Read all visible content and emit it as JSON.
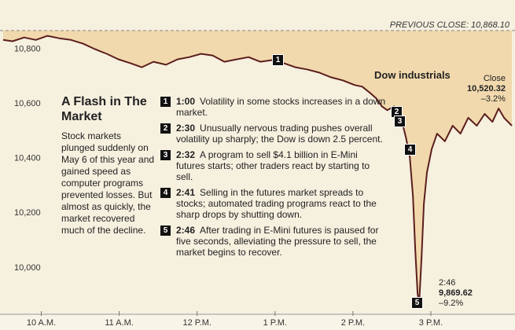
{
  "chart_data": {
    "type": "line",
    "title": "A Flash in The Market",
    "description": "Stock markets plunged suddenly on May 6 of this year and gained speed as computer programs prevented losses. But almost as quickly, the market recovered much of the decline.",
    "x": [
      9.51,
      9.63,
      9.78,
      9.93,
      10.08,
      10.23,
      10.38,
      10.54,
      10.69,
      10.84,
      10.99,
      11.14,
      11.29,
      11.44,
      11.6,
      11.75,
      11.9,
      12.05,
      12.2,
      12.35,
      12.51,
      12.66,
      12.81,
      12.96,
      13.11,
      13.26,
      13.41,
      13.57,
      13.72,
      13.87,
      14.02,
      14.12,
      14.22,
      14.3,
      14.37,
      14.44,
      14.53,
      14.58,
      14.63,
      14.68,
      14.73,
      14.77,
      14.8,
      14.83,
      14.85,
      14.88,
      14.91,
      14.95,
      15.01,
      15.08,
      15.18,
      15.28,
      15.38,
      15.48,
      15.59,
      15.69,
      15.79,
      15.87,
      15.94,
      16.04
    ],
    "series": [
      {
        "name": "Dow industrials",
        "color": "#5b1e1c",
        "values": [
          10834,
          10829,
          10843,
          10834,
          10849,
          10840,
          10834,
          10820,
          10800,
          10783,
          10763,
          10749,
          10734,
          10754,
          10743,
          10763,
          10771,
          10783,
          10777,
          10754,
          10763,
          10771,
          10754,
          10760,
          10749,
          10734,
          10726,
          10714,
          10697,
          10686,
          10669,
          10663,
          10640,
          10620,
          10591,
          10577,
          10591,
          10554,
          10534,
          10477,
          10406,
          10263,
          10063,
          9906,
          9870,
          10034,
          10234,
          10349,
          10434,
          10491,
          10463,
          10520,
          10491,
          10549,
          10520,
          10563,
          10534,
          10583,
          10549,
          10520
        ]
      }
    ],
    "xlim": [
      9.47,
      16.08
    ],
    "ylim": [
      9830,
      10980
    ],
    "xticks": [
      {
        "value": 10,
        "label": "10 A.M."
      },
      {
        "value": 11,
        "label": "11 A.M."
      },
      {
        "value": 12,
        "label": "12 P.M."
      },
      {
        "value": 13,
        "label": "1 P.M."
      },
      {
        "value": 14,
        "label": "2 P.M."
      },
      {
        "value": 15,
        "label": "3 P.M."
      }
    ],
    "yticks": [
      {
        "value": 10000,
        "label": "10,000"
      },
      {
        "value": 10200,
        "label": "10,200"
      },
      {
        "value": 10400,
        "label": "10,400"
      },
      {
        "value": 10600,
        "label": "10,600"
      },
      {
        "value": 10800,
        "label": "10,800"
      }
    ],
    "grid": false,
    "previous_close": {
      "value": 10868.1,
      "label": "PREVIOUS CLOSE: 10,868.10"
    },
    "close": {
      "label": "Close",
      "value": "10,520.32",
      "change": "–3.2%"
    },
    "low": {
      "time": "2:46",
      "value": "9,869.62",
      "change": "–9.2%"
    },
    "events": [
      {
        "number": "1",
        "time": "1:00",
        "text": "Volatility in some stocks increases in a down market."
      },
      {
        "number": "2",
        "time": "2:30",
        "text": "Unusually nervous trading pushes overall volatility up sharply; the Dow is down 2.5 percent."
      },
      {
        "number": "3",
        "time": "2:32",
        "text": "A program to sell $4.1 billion in E-Mini futures starts; other traders react by starting to sell."
      },
      {
        "number": "4",
        "time": "2:41",
        "text": "Selling in the futures market spreads to stocks; automated trading programs react to the sharp drops by shutting down."
      },
      {
        "number": "5",
        "time": "2:46",
        "text": "After trading in E-Mini futures is paused for five seconds, alleviating the pressure to sell, the market begins to recover."
      }
    ]
  }
}
